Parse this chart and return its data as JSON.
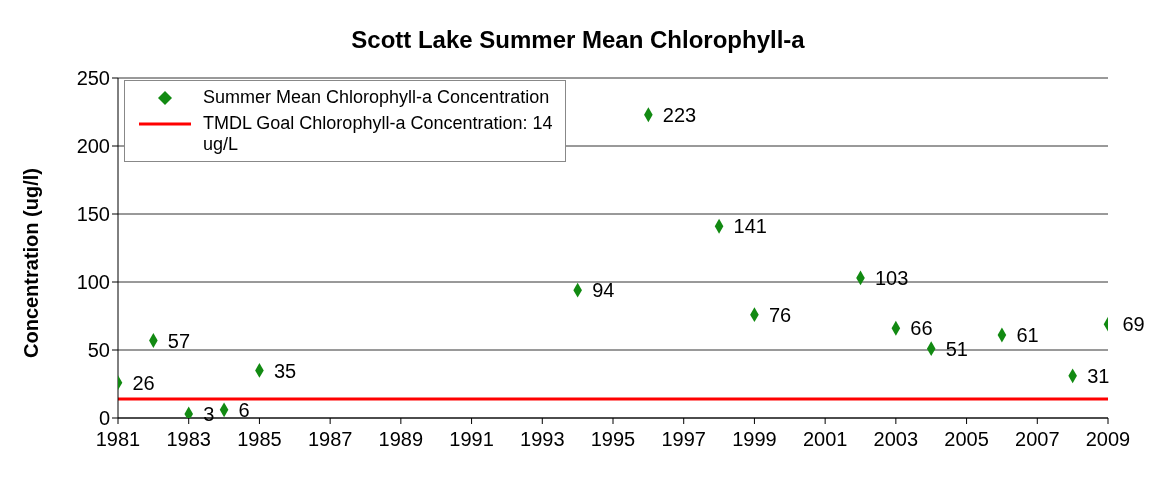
{
  "chart_data": {
    "type": "scatter",
    "title": "Scott Lake Summer Mean Chlorophyll-a",
    "ylabel": "Concentration (ug/l)",
    "x": [
      1981,
      1982,
      1983,
      1984,
      1985,
      1994,
      1996,
      1998,
      1999,
      2002,
      2003,
      2004,
      2006,
      2008,
      2009
    ],
    "series": [
      {
        "name": "Summer Mean Chlorophyll-a Concentration",
        "color": "#128a12",
        "values": [
          26,
          57,
          3,
          6,
          35,
          94,
          223,
          141,
          76,
          103,
          66,
          51,
          61,
          31,
          69
        ]
      }
    ],
    "xlim": [
      1981,
      2009
    ],
    "xticks": [
      1981,
      1983,
      1985,
      1987,
      1989,
      1991,
      1993,
      1995,
      1997,
      1999,
      2001,
      2003,
      2005,
      2007,
      2009
    ],
    "ylim": [
      0,
      250
    ],
    "yticks": [
      0,
      50,
      100,
      150,
      200,
      250
    ],
    "ref_lines": [
      {
        "axis": "y",
        "value": 14,
        "label": "TMDL Goal Chlorophyll-a Concentration: 14 ug/L",
        "color": "#ff0000",
        "line_style": "solid"
      }
    ],
    "grid": "y",
    "legend": "top left",
    "marker": "diamond",
    "data_labels": true
  }
}
